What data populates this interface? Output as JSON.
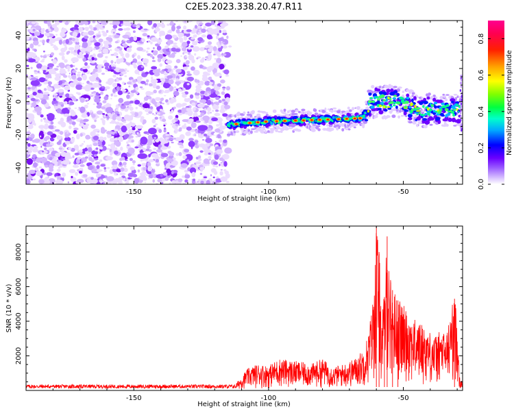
{
  "figure": {
    "title": "C2E5.2023.338.20.47.R11"
  },
  "chart_data": [
    {
      "type": "heatmap",
      "name": "spectrogram",
      "title": "C2E5.2023.338.20.47.R11",
      "xlabel": "Height of straight line (km)",
      "ylabel": "Frequency (Hz)",
      "xlim": [
        -190,
        -28
      ],
      "ylim": [
        -50,
        49
      ],
      "xticks": [
        -150,
        -100,
        -50
      ],
      "yticks": [
        -40,
        -20,
        0,
        20,
        40
      ],
      "xtick_labels": [
        "-150",
        "-100",
        "-50"
      ],
      "ytick_labels": [
        "-40",
        "-20",
        "0",
        "20",
        "40"
      ],
      "noise_region_x": [
        -190,
        -115
      ],
      "signal_ridge": {
        "x": [
          -115,
          -100,
          -80,
          -65,
          -62,
          -50,
          -45,
          -40,
          -30
        ],
        "freq_hz": [
          -14,
          -12,
          -11,
          -10,
          0,
          0,
          -6,
          -5,
          -5
        ]
      },
      "colorbar": {
        "label": "Normalized spectral amplitude",
        "range": [
          0,
          0.9
        ],
        "ticks": [
          0.0,
          0.2,
          0.4,
          0.6,
          0.8
        ],
        "tick_labels": [
          "0.0",
          "0.2",
          "0.4",
          "0.6",
          "0.8"
        ],
        "colors": [
          "#ffffff",
          "#b58aff",
          "#7000ff",
          "#0000ff",
          "#00c8ff",
          "#00ff80",
          "#80ff00",
          "#ffff00",
          "#ff8000",
          "#ff0000",
          "#ff0080"
        ]
      }
    },
    {
      "type": "line",
      "name": "snr",
      "xlabel": "Height of straight line (km)",
      "ylabel": "SNR (10 * v/v)",
      "xlim": [
        -190,
        -28
      ],
      "ylim": [
        0,
        9500
      ],
      "xticks": [
        -150,
        -100,
        -50
      ],
      "yticks": [
        2000,
        4000,
        6000,
        8000
      ],
      "xtick_labels": [
        "-150",
        "-100",
        "-50"
      ],
      "ytick_labels": [
        "2000",
        "4000",
        "6000",
        "8000"
      ],
      "color": "#ff0000",
      "series": [
        {
          "name": "SNR envelope",
          "x": [
            -190,
            -150,
            -115,
            -112,
            -108,
            -104,
            -100,
            -96,
            -92,
            -88,
            -84,
            -80,
            -76,
            -72,
            -68,
            -65,
            -63,
            -61,
            -60,
            -59,
            -58,
            -57,
            -56,
            -55,
            -54,
            -52,
            -50,
            -48,
            -46,
            -44,
            -42,
            -40,
            -38,
            -36,
            -34,
            -32,
            -31,
            -30,
            -29,
            -28
          ],
          "y": [
            220,
            220,
            230,
            400,
            1200,
            1500,
            1400,
            1800,
            1700,
            1600,
            1500,
            1800,
            1300,
            1500,
            1800,
            2300,
            3200,
            5500,
            9500,
            8000,
            4500,
            5400,
            8900,
            6600,
            5800,
            5200,
            4800,
            4500,
            4000,
            3900,
            3600,
            3300,
            3100,
            3400,
            3200,
            4800,
            5300,
            4200,
            600,
            500
          ]
        }
      ]
    }
  ]
}
